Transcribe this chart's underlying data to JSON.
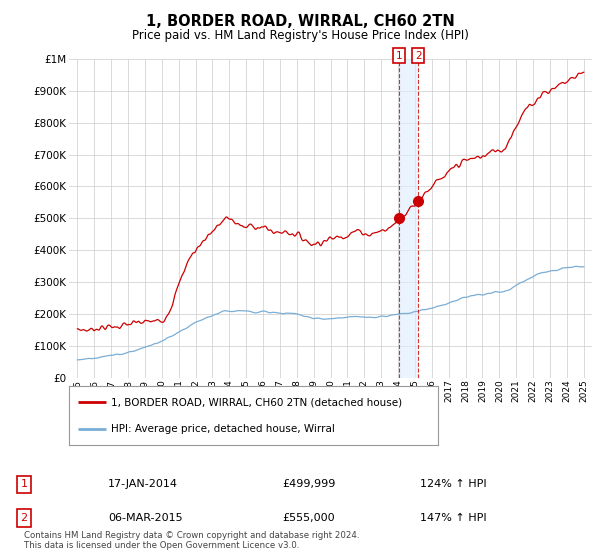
{
  "title": "1, BORDER ROAD, WIRRAL, CH60 2TN",
  "subtitle": "Price paid vs. HM Land Registry's House Price Index (HPI)",
  "legend_label_red": "1, BORDER ROAD, WIRRAL, CH60 2TN (detached house)",
  "legend_label_blue": "HPI: Average price, detached house, Wirral",
  "footer": "Contains HM Land Registry data © Crown copyright and database right 2024.\nThis data is licensed under the Open Government Licence v3.0.",
  "sale1_date": 2014.05,
  "sale1_label": "17-JAN-2014",
  "sale1_price": 499999,
  "sale1_price_label": "£499,999",
  "sale1_hpi": "124% ↑ HPI",
  "sale2_date": 2015.2,
  "sale2_label": "06-MAR-2015",
  "sale2_price": 555000,
  "sale2_price_label": "£555,000",
  "sale2_hpi": "147% ↑ HPI",
  "ylim_min": 0,
  "ylim_max": 1000000,
  "xlim_start": 1994.5,
  "xlim_end": 2025.5,
  "red_color": "#cc0000",
  "blue_color": "#7aaed6",
  "shade_color": "#ddeeff",
  "dot_color": "#cc0000",
  "background_color": "#ffffff",
  "grid_color": "#cccccc",
  "red_x": [
    1995.0,
    1995.3,
    1995.6,
    1996.0,
    1996.5,
    1997.0,
    1997.5,
    1998.0,
    1998.5,
    1999.0,
    1999.5,
    2000.0,
    2000.5,
    2001.0,
    2001.5,
    2002.0,
    2002.3,
    2002.6,
    2003.0,
    2003.3,
    2003.6,
    2004.0,
    2004.3,
    2004.6,
    2005.0,
    2005.3,
    2005.6,
    2006.0,
    2006.3,
    2006.6,
    2007.0,
    2007.3,
    2007.6,
    2008.0,
    2008.3,
    2008.6,
    2009.0,
    2009.3,
    2009.6,
    2010.0,
    2010.3,
    2010.6,
    2011.0,
    2011.3,
    2011.6,
    2012.0,
    2012.3,
    2012.6,
    2013.0,
    2013.3,
    2013.6,
    2014.05,
    2015.2,
    2015.5,
    2016.0,
    2016.5,
    2017.0,
    2017.3,
    2017.6,
    2018.0,
    2018.3,
    2018.6,
    2019.0,
    2019.3,
    2019.6,
    2020.0,
    2020.3,
    2020.6,
    2021.0,
    2021.3,
    2021.6,
    2022.0,
    2022.3,
    2022.6,
    2023.0,
    2023.3,
    2023.6,
    2024.0,
    2024.3,
    2024.6,
    2025.0
  ],
  "red_y": [
    148000,
    152000,
    150000,
    155000,
    158000,
    160000,
    163000,
    167000,
    172000,
    175000,
    178000,
    182000,
    220000,
    290000,
    360000,
    400000,
    420000,
    440000,
    460000,
    475000,
    490000,
    500000,
    490000,
    480000,
    470000,
    480000,
    475000,
    470000,
    465000,
    460000,
    455000,
    460000,
    455000,
    450000,
    440000,
    430000,
    420000,
    425000,
    430000,
    435000,
    440000,
    445000,
    450000,
    455000,
    460000,
    455000,
    450000,
    455000,
    460000,
    465000,
    475000,
    499999,
    555000,
    575000,
    600000,
    620000,
    640000,
    660000,
    670000,
    680000,
    685000,
    690000,
    695000,
    700000,
    710000,
    715000,
    720000,
    750000,
    790000,
    820000,
    840000,
    860000,
    880000,
    895000,
    900000,
    910000,
    920000,
    930000,
    940000,
    950000,
    955000
  ],
  "blue_x": [
    1995.0,
    1995.5,
    1996.0,
    1996.5,
    1997.0,
    1997.5,
    1998.0,
    1998.5,
    1999.0,
    1999.5,
    2000.0,
    2000.5,
    2001.0,
    2001.5,
    2002.0,
    2002.5,
    2003.0,
    2003.5,
    2004.0,
    2004.5,
    2005.0,
    2005.5,
    2006.0,
    2006.5,
    2007.0,
    2007.5,
    2008.0,
    2008.5,
    2009.0,
    2009.5,
    2010.0,
    2010.5,
    2011.0,
    2011.5,
    2012.0,
    2012.5,
    2013.0,
    2013.5,
    2014.0,
    2014.5,
    2015.0,
    2015.5,
    2016.0,
    2016.5,
    2017.0,
    2017.5,
    2018.0,
    2018.5,
    2019.0,
    2019.5,
    2020.0,
    2020.5,
    2021.0,
    2021.5,
    2022.0,
    2022.5,
    2023.0,
    2023.5,
    2024.0,
    2024.5,
    2025.0
  ],
  "blue_y": [
    58000,
    60000,
    63000,
    66000,
    70000,
    75000,
    80000,
    88000,
    96000,
    105000,
    115000,
    128000,
    142000,
    158000,
    172000,
    185000,
    196000,
    205000,
    210000,
    212000,
    210000,
    208000,
    207000,
    205000,
    203000,
    202000,
    200000,
    195000,
    188000,
    185000,
    186000,
    188000,
    190000,
    191000,
    190000,
    190000,
    193000,
    196000,
    200000,
    203000,
    207000,
    213000,
    220000,
    228000,
    236000,
    244000,
    252000,
    258000,
    262000,
    265000,
    268000,
    275000,
    290000,
    305000,
    320000,
    330000,
    335000,
    340000,
    345000,
    348000,
    350000
  ]
}
